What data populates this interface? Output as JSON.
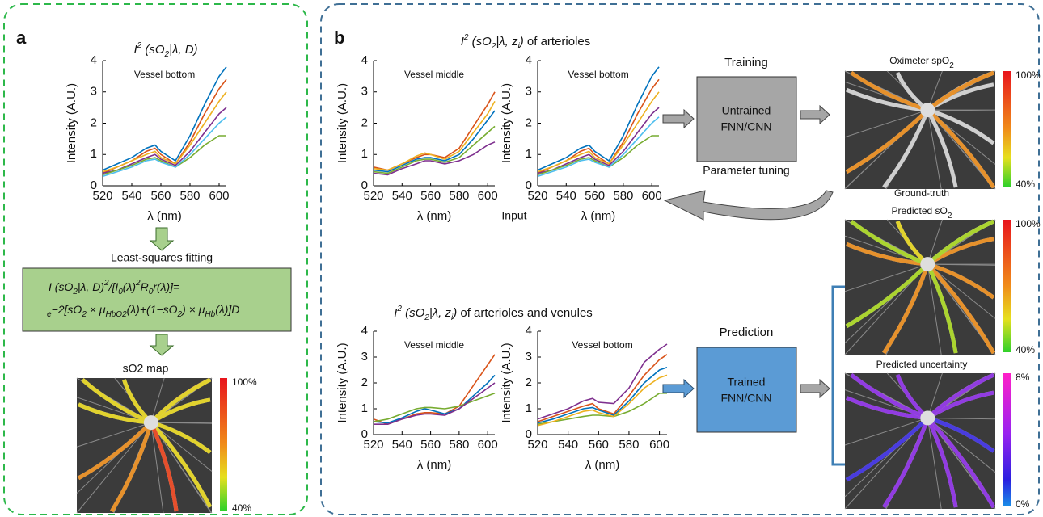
{
  "panel_a": {
    "label": "a",
    "title": [
      "I",
      "2",
      " (sO",
      "2",
      "|λ, D)"
    ],
    "step_label": "Least-squares fitting",
    "equation": {
      "line1": [
        "I (sO",
        "2",
        "|λ, D)",
        "2",
        "/[I",
        "0",
        "(λ)",
        "2",
        "R",
        "0",
        "r(λ)]="
      ],
      "line2": [
        "e",
        "−2[",
        "sO",
        "2",
        " × μ",
        "HbO",
        "2",
        "(λ)+(1−",
        "sO",
        "2",
        ") × μ",
        "Hb",
        "(λ)]D"
      ]
    },
    "map_title": "sO2 map",
    "colorbar": {
      "top": "100%",
      "bottom": "40%"
    }
  },
  "panel_b": {
    "label": "b",
    "title_top": [
      "I",
      "2",
      " (sO",
      "2",
      "|λ, z",
      "i",
      ")",
      " of arterioles"
    ],
    "title_bottom": [
      "I",
      "2",
      " (sO",
      "2",
      "|λ, z",
      "i",
      ")",
      " of arterioles and venules"
    ],
    "input_label": "Input",
    "training": {
      "label": "Training",
      "box": [
        "Untrained",
        "FNN/CNN"
      ],
      "note": "Parameter tuning"
    },
    "prediction": {
      "label": "Prediction",
      "box": [
        "Trained",
        "FNN/CNN"
      ]
    },
    "maps": [
      {
        "title": [
          "Oximeter spO",
          "2"
        ],
        "caption": "Ground-truth",
        "colorbar": {
          "top": "100%",
          "bottom": "40%"
        }
      },
      {
        "title": [
          "Predicted sO",
          "2"
        ],
        "colorbar": {
          "top": "100%",
          "bottom": "40%"
        }
      },
      {
        "title": [
          "Predicted uncertainty"
        ],
        "colorbar": {
          "top": "8%",
          "bottom": "0%"
        }
      }
    ]
  },
  "plots": [
    {
      "label": "Vessel bottom",
      "xlabel": "λ (nm)",
      "ylabel": "Intensity (A.U.)",
      "xlim": [
        520,
        605
      ],
      "ylim": [
        0,
        4
      ],
      "xticks": [
        520,
        540,
        560,
        580,
        600
      ],
      "yticks": [
        0,
        1,
        2,
        3,
        4
      ],
      "x": [
        520,
        530,
        540,
        550,
        556,
        560,
        570,
        580,
        590,
        600,
        605
      ],
      "series": [
        {
          "color": "#0072bd",
          "values": [
            0.5,
            0.7,
            0.9,
            1.2,
            1.3,
            1.1,
            0.8,
            1.6,
            2.6,
            3.5,
            3.8
          ]
        },
        {
          "color": "#d95319",
          "values": [
            0.4,
            0.6,
            0.8,
            1.1,
            1.2,
            1.0,
            0.7,
            1.4,
            2.3,
            3.1,
            3.4
          ]
        },
        {
          "color": "#edb120",
          "values": [
            0.45,
            0.6,
            0.8,
            1.0,
            1.1,
            0.9,
            0.7,
            1.3,
            2.0,
            2.7,
            3.0
          ]
        },
        {
          "color": "#7e2f8e",
          "values": [
            0.4,
            0.5,
            0.7,
            0.9,
            1.0,
            0.85,
            0.65,
            1.1,
            1.7,
            2.3,
            2.5
          ]
        },
        {
          "color": "#77ac30",
          "values": [
            0.35,
            0.5,
            0.65,
            0.85,
            0.9,
            0.8,
            0.6,
            0.9,
            1.3,
            1.6,
            1.6
          ]
        },
        {
          "color": "#4dbeee",
          "values": [
            0.3,
            0.45,
            0.6,
            0.8,
            0.85,
            0.75,
            0.6,
            1.0,
            1.5,
            2.0,
            2.2
          ]
        }
      ]
    },
    {
      "label": "Vessel middle",
      "xlabel": "λ (nm)",
      "ylabel": "Intensity (A.U.)",
      "xlim": [
        520,
        605
      ],
      "ylim": [
        0,
        4
      ],
      "xticks": [
        520,
        540,
        560,
        580,
        600
      ],
      "yticks": [
        0,
        1,
        2,
        3,
        4
      ],
      "x": [
        520,
        530,
        540,
        550,
        556,
        560,
        570,
        580,
        590,
        600,
        605
      ],
      "series": [
        {
          "color": "#d95319",
          "values": [
            0.6,
            0.5,
            0.7,
            0.9,
            1.0,
            1.0,
            0.9,
            1.2,
            1.9,
            2.6,
            3.0
          ]
        },
        {
          "color": "#0072bd",
          "values": [
            0.5,
            0.45,
            0.65,
            0.85,
            0.9,
            0.9,
            0.8,
            1.0,
            1.5,
            2.1,
            2.4
          ]
        },
        {
          "color": "#77ac30",
          "values": [
            0.45,
            0.4,
            0.6,
            0.8,
            0.85,
            0.85,
            0.75,
            0.9,
            1.3,
            1.7,
            1.9
          ]
        },
        {
          "color": "#7e2f8e",
          "values": [
            0.4,
            0.35,
            0.55,
            0.7,
            0.8,
            0.8,
            0.7,
            0.8,
            1.0,
            1.3,
            1.4
          ]
        },
        {
          "color": "#edb120",
          "values": [
            0.55,
            0.5,
            0.7,
            0.95,
            1.05,
            1.0,
            0.85,
            1.1,
            1.7,
            2.3,
            2.7
          ]
        }
      ]
    },
    {
      "label": "Vessel bottom",
      "xlabel": "λ (nm)",
      "ylabel": "Intensity (A.U.)",
      "xlim": [
        520,
        605
      ],
      "ylim": [
        0,
        4
      ],
      "xticks": [
        520,
        540,
        560,
        580,
        600
      ],
      "yticks": [
        0,
        1,
        2,
        3,
        4
      ],
      "x": [
        520,
        530,
        540,
        550,
        556,
        560,
        570,
        580,
        590,
        600,
        605
      ],
      "series": [
        {
          "color": "#0072bd",
          "values": [
            0.5,
            0.7,
            0.9,
            1.2,
            1.3,
            1.1,
            0.8,
            1.6,
            2.6,
            3.5,
            3.8
          ]
        },
        {
          "color": "#d95319",
          "values": [
            0.4,
            0.6,
            0.8,
            1.1,
            1.2,
            1.0,
            0.7,
            1.4,
            2.3,
            3.1,
            3.4
          ]
        },
        {
          "color": "#edb120",
          "values": [
            0.45,
            0.6,
            0.8,
            1.0,
            1.1,
            0.9,
            0.7,
            1.3,
            2.0,
            2.7,
            3.0
          ]
        },
        {
          "color": "#7e2f8e",
          "values": [
            0.4,
            0.5,
            0.7,
            0.9,
            1.0,
            0.85,
            0.65,
            1.1,
            1.7,
            2.3,
            2.5
          ]
        },
        {
          "color": "#77ac30",
          "values": [
            0.35,
            0.5,
            0.65,
            0.85,
            0.9,
            0.8,
            0.6,
            0.9,
            1.3,
            1.6,
            1.6
          ]
        },
        {
          "color": "#4dbeee",
          "values": [
            0.3,
            0.45,
            0.6,
            0.8,
            0.85,
            0.75,
            0.6,
            1.0,
            1.5,
            2.0,
            2.2
          ]
        }
      ]
    },
    {
      "label": "Vessel middle",
      "xlabel": "λ (nm)",
      "ylabel": "Intensity (A.U.)",
      "xlim": [
        520,
        605
      ],
      "ylim": [
        0,
        4
      ],
      "xticks": [
        520,
        540,
        560,
        580,
        600
      ],
      "yticks": [
        0,
        1,
        2,
        3,
        4
      ],
      "x": [
        520,
        530,
        540,
        550,
        556,
        560,
        570,
        580,
        590,
        600,
        605
      ],
      "series": [
        {
          "color": "#d95319",
          "values": [
            0.6,
            0.4,
            0.6,
            0.8,
            0.85,
            0.85,
            0.8,
            1.1,
            1.9,
            2.7,
            3.1
          ]
        },
        {
          "color": "#0072bd",
          "values": [
            0.5,
            0.45,
            0.65,
            0.9,
            1.0,
            0.95,
            0.8,
            1.0,
            1.5,
            2.0,
            2.3
          ]
        },
        {
          "color": "#77ac30",
          "values": [
            0.5,
            0.6,
            0.8,
            1.0,
            1.05,
            1.05,
            1.0,
            1.1,
            1.3,
            1.5,
            1.6
          ]
        },
        {
          "color": "#7e2f8e",
          "values": [
            0.4,
            0.4,
            0.6,
            0.75,
            0.8,
            0.8,
            0.75,
            1.0,
            1.4,
            1.8,
            2.0
          ]
        }
      ]
    },
    {
      "label": "Vessel bottom",
      "xlabel": "λ (nm)",
      "ylabel": "Intensity (A.U.)",
      "xlim": [
        520,
        605
      ],
      "ylim": [
        0,
        4
      ],
      "xticks": [
        520,
        540,
        560,
        580,
        600
      ],
      "yticks": [
        0,
        1,
        2,
        3,
        4
      ],
      "x": [
        520,
        530,
        540,
        550,
        556,
        560,
        570,
        580,
        590,
        600,
        605
      ],
      "series": [
        {
          "color": "#7e2f8e",
          "values": [
            0.6,
            0.8,
            1.0,
            1.3,
            1.4,
            1.25,
            1.2,
            1.8,
            2.8,
            3.3,
            3.5
          ]
        },
        {
          "color": "#d95319",
          "values": [
            0.5,
            0.7,
            0.9,
            1.1,
            1.2,
            1.0,
            0.8,
            1.5,
            2.3,
            2.9,
            3.1
          ]
        },
        {
          "color": "#77ac30",
          "values": [
            0.4,
            0.5,
            0.6,
            0.7,
            0.75,
            0.75,
            0.7,
            0.9,
            1.2,
            1.6,
            1.6
          ]
        },
        {
          "color": "#0072bd",
          "values": [
            0.45,
            0.6,
            0.8,
            1.0,
            1.05,
            0.95,
            0.75,
            1.3,
            2.0,
            2.5,
            2.6
          ]
        },
        {
          "color": "#edb120",
          "values": [
            0.35,
            0.5,
            0.7,
            0.9,
            0.95,
            0.85,
            0.7,
            1.2,
            1.8,
            2.2,
            2.3
          ]
        }
      ]
    }
  ]
}
